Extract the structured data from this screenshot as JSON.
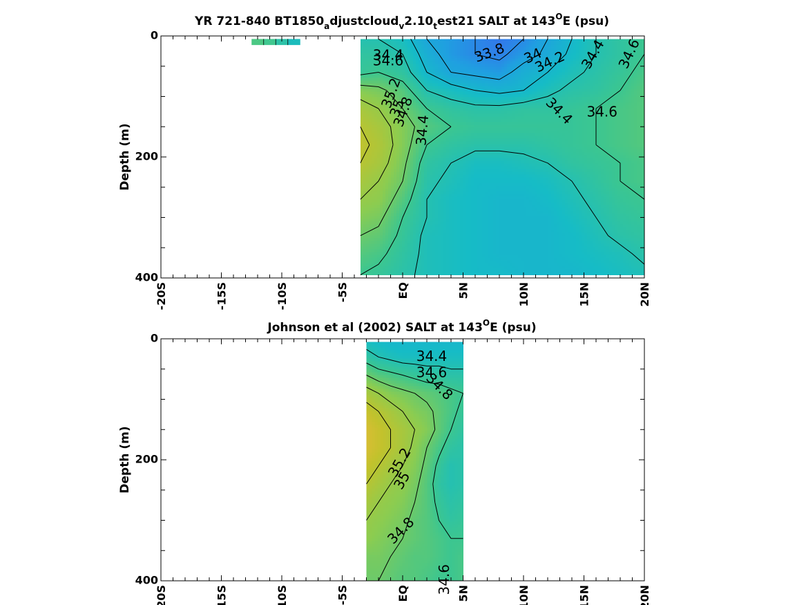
{
  "chart_data": [
    {
      "type": "heatmap",
      "subtype": "filled-contour",
      "title_parts": [
        "YR 721-840 BT1850",
        "a",
        "djustcloud",
        "v",
        "2.10",
        "t",
        "est21 SALT at 143",
        "O",
        "E (psu)"
      ],
      "ylabel": "Depth (m)",
      "xlim": [
        -20,
        20
      ],
      "ylim": [
        400,
        0
      ],
      "y_reversed": true,
      "x_tick_labels": [
        "-20S",
        "-15S",
        "-10S",
        "-5S",
        "EQ",
        "5N",
        "10N",
        "15N",
        "20N"
      ],
      "y_tick_labels": [
        "0",
        "200",
        "400"
      ],
      "data_extent": {
        "x": [
          -3.5,
          20
        ],
        "y": [
          5,
          395
        ]
      },
      "extra_patch": {
        "x": [
          -12.5,
          -8.5
        ],
        "y": [
          5,
          15
        ]
      },
      "colormap": [
        "#3a66f0",
        "#1fa0e0",
        "#16bcc6",
        "#3cc690",
        "#8ccc50",
        "#c2c22c",
        "#f6b83e"
      ],
      "clim": [
        33.6,
        35.6
      ],
      "salinity_field": {
        "x": [
          -3.5,
          -2,
          0,
          2,
          4,
          6,
          8,
          10,
          12,
          14,
          16,
          18,
          20
        ],
        "depth": [
          5,
          30,
          60,
          90,
          120,
          150,
          180,
          210,
          240,
          270,
          300,
          330,
          360,
          395
        ],
        "values": [
          [
            34.4,
            34.4,
            34.3,
            34.0,
            33.9,
            33.8,
            33.7,
            33.8,
            34.0,
            34.2,
            34.4,
            34.5,
            34.6
          ],
          [
            34.5,
            34.5,
            34.4,
            34.1,
            33.9,
            33.8,
            33.75,
            33.9,
            34.05,
            34.25,
            34.4,
            34.5,
            34.6
          ],
          [
            34.55,
            34.6,
            34.5,
            34.2,
            34.0,
            33.95,
            33.9,
            34.1,
            34.2,
            34.35,
            34.45,
            34.55,
            34.65
          ],
          [
            34.9,
            34.85,
            34.7,
            34.4,
            34.3,
            34.2,
            34.15,
            34.2,
            34.35,
            34.45,
            34.5,
            34.6,
            34.7
          ],
          [
            35.1,
            35.0,
            34.8,
            34.6,
            34.5,
            34.45,
            34.45,
            34.5,
            34.5,
            34.55,
            34.6,
            34.65,
            34.7
          ],
          [
            35.2,
            35.1,
            34.9,
            34.7,
            34.6,
            34.55,
            34.55,
            34.55,
            34.55,
            34.55,
            34.6,
            34.65,
            34.7
          ],
          [
            35.25,
            35.15,
            34.9,
            34.6,
            34.5,
            34.45,
            34.45,
            34.45,
            34.5,
            34.55,
            34.6,
            34.65,
            34.7
          ],
          [
            35.2,
            35.1,
            34.85,
            34.5,
            34.4,
            34.3,
            34.3,
            34.35,
            34.4,
            34.5,
            34.55,
            34.6,
            34.65
          ],
          [
            35.1,
            35.0,
            34.8,
            34.45,
            34.35,
            34.25,
            34.25,
            34.25,
            34.3,
            34.4,
            34.5,
            34.6,
            34.65
          ],
          [
            35.0,
            34.95,
            34.7,
            34.4,
            34.3,
            34.25,
            34.2,
            34.2,
            34.25,
            34.35,
            34.45,
            34.55,
            34.6
          ],
          [
            34.9,
            34.85,
            34.6,
            34.4,
            34.3,
            34.25,
            34.2,
            34.2,
            34.2,
            34.3,
            34.4,
            34.5,
            34.55
          ],
          [
            34.8,
            34.75,
            34.55,
            34.35,
            34.3,
            34.25,
            34.2,
            34.2,
            34.2,
            34.25,
            34.35,
            34.45,
            34.5
          ],
          [
            34.7,
            34.65,
            34.5,
            34.35,
            34.3,
            34.25,
            34.2,
            34.2,
            34.2,
            34.25,
            34.3,
            34.35,
            34.45
          ],
          [
            34.6,
            34.55,
            34.45,
            34.35,
            34.3,
            34.25,
            34.25,
            34.2,
            34.2,
            34.2,
            34.25,
            34.3,
            34.35
          ]
        ]
      },
      "contour_levels": [
        33.8,
        34.0,
        34.2,
        34.4,
        34.6,
        34.8,
        35.0,
        35.2
      ],
      "contour_labels": [
        {
          "text": "34.4",
          "x": -1.2,
          "y": 33,
          "angle": 0
        },
        {
          "text": "34.6",
          "x": -1.2,
          "y": 42,
          "angle": 0
        },
        {
          "text": "33.8",
          "x": 7.2,
          "y": 29,
          "angle": -20
        },
        {
          "text": "34",
          "x": 10.8,
          "y": 34,
          "angle": -25
        },
        {
          "text": "34.2",
          "x": 12.2,
          "y": 44,
          "angle": -25
        },
        {
          "text": "34.4",
          "x": 15.8,
          "y": 31,
          "angle": -60
        },
        {
          "text": "34.6",
          "x": 18.8,
          "y": 30,
          "angle": -65
        },
        {
          "text": "35.2",
          "x": -0.9,
          "y": 95,
          "angle": -70
        },
        {
          "text": "35",
          "x": -0.4,
          "y": 120,
          "angle": -70
        },
        {
          "text": "34.8",
          "x": 0.1,
          "y": 126,
          "angle": -70
        },
        {
          "text": "34.4",
          "x": 1.7,
          "y": 156,
          "angle": -85
        },
        {
          "text": "34.4",
          "x": 12.9,
          "y": 125,
          "angle": 45
        },
        {
          "text": "34.6",
          "x": 16.5,
          "y": 127,
          "angle": 0
        }
      ]
    },
    {
      "type": "heatmap",
      "subtype": "filled-contour",
      "title_parts": [
        "Johnson et al (2002) SALT at 143",
        "O",
        "E (psu)"
      ],
      "ylabel": "Depth (m)",
      "xlim": [
        -20,
        20
      ],
      "ylim": [
        400,
        0
      ],
      "y_reversed": true,
      "x_tick_labels": [
        "-20S",
        "-15S",
        "-10S",
        "-5S",
        "EQ",
        "5N",
        "10N",
        "15N",
        "20N"
      ],
      "y_tick_labels": [
        "0",
        "200",
        "400"
      ],
      "data_extent": {
        "x": [
          -3,
          5
        ],
        "y": [
          5,
          400
        ]
      },
      "colormap": [
        "#3a66f0",
        "#1fa0e0",
        "#16bcc6",
        "#3cc690",
        "#8ccc50",
        "#c2c22c",
        "#f6b83e"
      ],
      "clim": [
        33.6,
        35.6
      ],
      "salinity_field": {
        "x": [
          -3,
          -2,
          -1,
          0,
          1,
          2,
          3,
          4,
          5
        ],
        "depth": [
          5,
          30,
          60,
          90,
          120,
          150,
          180,
          210,
          240,
          270,
          300,
          330,
          360,
          400
        ],
        "values": [
          [
            34.3,
            34.25,
            34.2,
            34.2,
            34.2,
            34.2,
            34.2,
            34.2,
            34.2
          ],
          [
            34.5,
            34.4,
            34.35,
            34.3,
            34.3,
            34.3,
            34.3,
            34.3,
            34.3
          ],
          [
            34.8,
            34.7,
            34.65,
            34.6,
            34.55,
            34.5,
            34.5,
            34.45,
            34.45
          ],
          [
            35.1,
            35.0,
            34.9,
            34.85,
            34.8,
            34.75,
            34.7,
            34.65,
            34.6
          ],
          [
            35.3,
            35.2,
            35.1,
            35.0,
            34.9,
            34.85,
            34.75,
            34.65,
            34.55
          ],
          [
            35.4,
            35.3,
            35.2,
            35.1,
            35.0,
            34.9,
            34.75,
            34.6,
            34.5
          ],
          [
            35.4,
            35.3,
            35.2,
            35.1,
            34.95,
            34.8,
            34.65,
            34.5,
            34.45
          ],
          [
            35.3,
            35.2,
            35.1,
            35.0,
            34.9,
            34.75,
            34.55,
            34.4,
            34.45
          ],
          [
            35.2,
            35.1,
            35.0,
            34.95,
            34.85,
            34.7,
            34.5,
            34.4,
            34.45
          ],
          [
            35.1,
            35.0,
            34.95,
            34.9,
            34.8,
            34.7,
            34.55,
            34.45,
            34.5
          ],
          [
            35.0,
            34.95,
            34.9,
            34.85,
            34.75,
            34.7,
            34.6,
            34.5,
            34.55
          ],
          [
            34.95,
            34.9,
            34.85,
            34.8,
            34.75,
            34.7,
            34.65,
            34.6,
            34.6
          ],
          [
            34.85,
            34.85,
            34.8,
            34.75,
            34.7,
            34.7,
            34.65,
            34.6,
            34.65
          ],
          [
            34.8,
            34.8,
            34.75,
            34.7,
            34.7,
            34.65,
            34.6,
            34.6,
            34.65
          ]
        ]
      },
      "contour_levels": [
        34.4,
        34.6,
        34.8,
        35.0,
        35.2
      ],
      "contour_labels": [
        {
          "text": "34.4",
          "x": 2.4,
          "y": 30,
          "angle": 0
        },
        {
          "text": "34.6",
          "x": 2.4,
          "y": 57,
          "angle": 0
        },
        {
          "text": "34.8",
          "x": 3,
          "y": 80,
          "angle": 45
        },
        {
          "text": "35.2",
          "x": -0.2,
          "y": 205,
          "angle": -60
        },
        {
          "text": "35",
          "x": 0,
          "y": 235,
          "angle": -60
        },
        {
          "text": "34.8",
          "x": -0.1,
          "y": 318,
          "angle": -45
        },
        {
          "text": "34.6",
          "x": 3.5,
          "y": 398,
          "angle": -90
        }
      ]
    }
  ]
}
